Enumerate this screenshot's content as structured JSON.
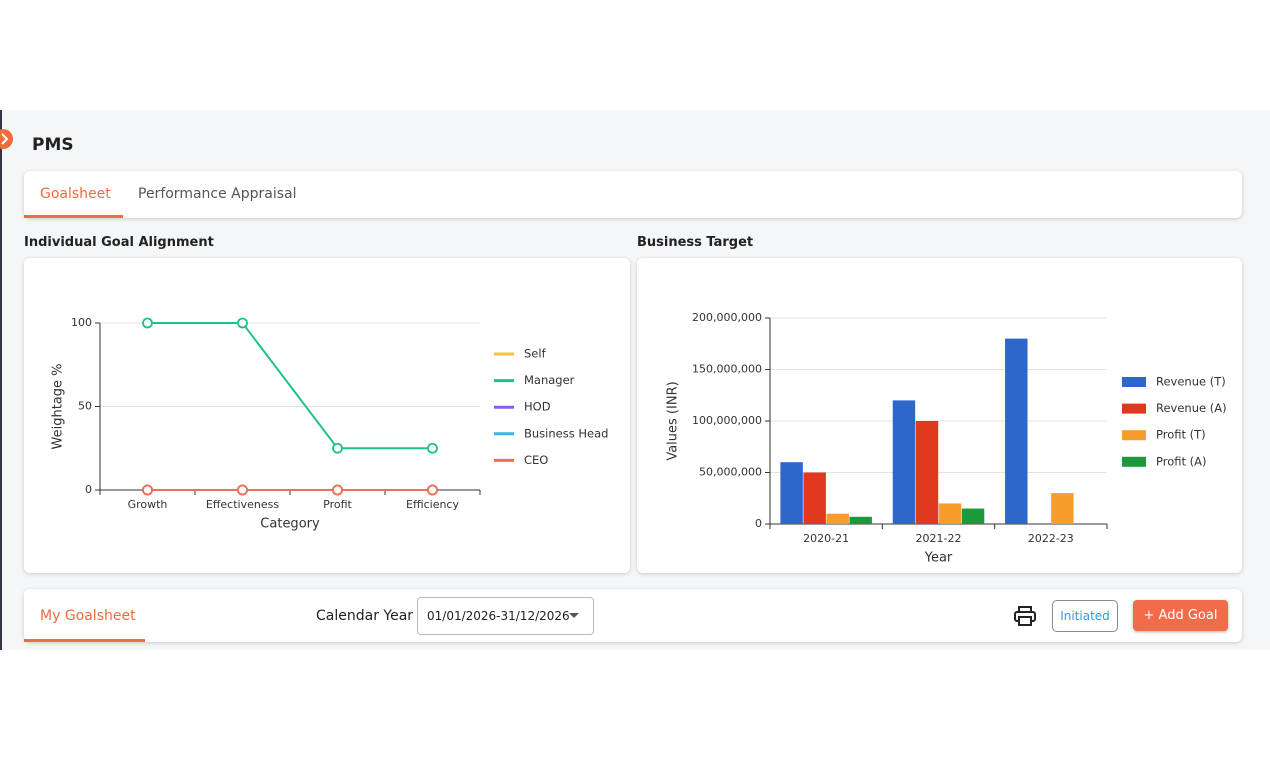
{
  "header": {
    "title": "PMS"
  },
  "tabs": [
    "Goalsheet",
    "Performance Appraisal"
  ],
  "charts": [
    {
      "type": "line",
      "title": "Individual Goal Alignment",
      "categories": [
        "Growth",
        "Effectiveness",
        "Profit",
        "Efficiency"
      ],
      "x_label": "Category",
      "y_label": "Weightage %",
      "ylim": [
        0,
        100
      ],
      "yticks": [
        0,
        50,
        100
      ],
      "grid": true,
      "series": [
        {
          "name": "Self",
          "color": "#f5c242",
          "values": [
            0,
            0,
            0,
            0
          ]
        },
        {
          "name": "Manager",
          "color": "#1fc28b",
          "values": [
            100,
            100,
            25,
            25
          ]
        },
        {
          "name": "HOD",
          "color": "#8a5cf0",
          "values": [
            0,
            0,
            0,
            0
          ]
        },
        {
          "name": "Business Head",
          "color": "#3bb4e6",
          "values": [
            0,
            0,
            0,
            0
          ]
        },
        {
          "name": "CEO",
          "color": "#f07050",
          "values": [
            0,
            0,
            0,
            0
          ]
        }
      ]
    },
    {
      "type": "bar",
      "title": "Business Target",
      "categories": [
        "2020-21",
        "2021-22",
        "2022-23"
      ],
      "x_label": "Year",
      "y_label": "Values (INR)",
      "ylim": [
        0,
        200000000
      ],
      "yticks": [
        0,
        {
          "value": 50000000,
          "label": "50,000,000"
        },
        {
          "value": 100000000,
          "label": "100,000,000"
        },
        {
          "value": 150000000,
          "label": "150,000,000"
        },
        {
          "value": 200000000,
          "label": "200,000,000"
        }
      ],
      "grid": true,
      "series": [
        {
          "name": "Revenue (T)",
          "color": "#2f66c9",
          "values": [
            60000000,
            120000000,
            180000000
          ]
        },
        {
          "name": "Revenue (A)",
          "color": "#e0391f",
          "values": [
            50000000,
            100000000,
            0
          ]
        },
        {
          "name": "Profit (T)",
          "color": "#f89c2c",
          "values": [
            10000000,
            20000000,
            30000000
          ]
        },
        {
          "name": "Profit (A)",
          "color": "#1a9a3a",
          "values": [
            7000000,
            15000000,
            0
          ]
        }
      ]
    }
  ],
  "goalsheet_bar": {
    "tab": "My Goalsheet",
    "calendar_label": "Calendar Year",
    "calendar_value": "01/01/2026-31/12/2026",
    "status": "Initiated",
    "add_button": "+ Add Goal"
  }
}
